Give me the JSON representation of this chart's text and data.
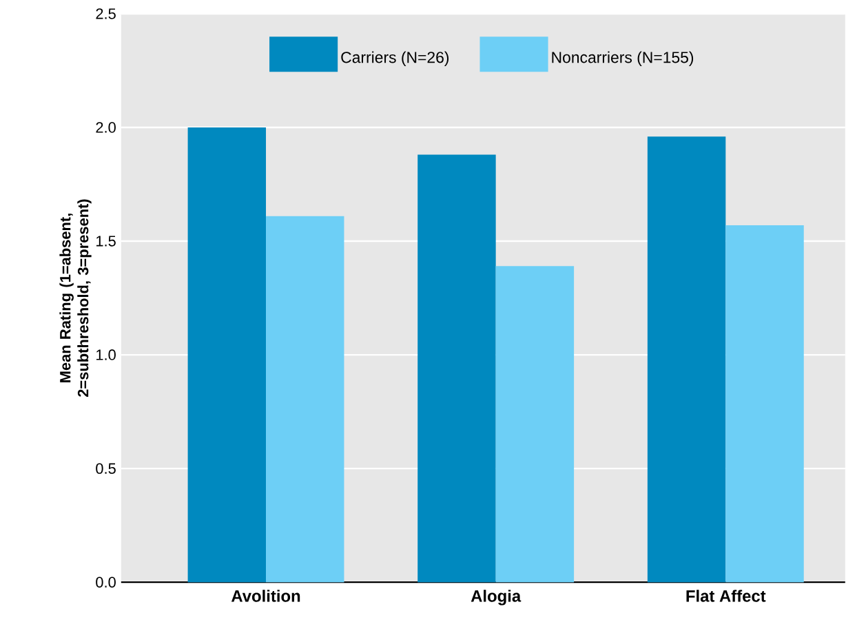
{
  "chart_data": {
    "type": "bar",
    "ylabel": "Mean Rating (1=absent, 2=subthreshold, 3=present)",
    "categories": [
      "Avolition",
      "Alogia",
      "Flat Affect"
    ],
    "series": [
      {
        "name": "Carriers (N=26)",
        "color": "#0089bf",
        "values": [
          2.0,
          1.88,
          1.96
        ]
      },
      {
        "name": "Noncarriers (N=155)",
        "color": "#6dcff6",
        "values": [
          1.61,
          1.39,
          1.57
        ]
      }
    ],
    "ylim": [
      0,
      2.5
    ],
    "yticks": [
      {
        "value": 0,
        "label": "0.0"
      },
      0.5,
      {
        "value": 1,
        "label": "1.0"
      },
      1.5,
      {
        "value": 2,
        "label": "2.0"
      },
      2.5
    ],
    "grid": "y",
    "legend": "top"
  }
}
